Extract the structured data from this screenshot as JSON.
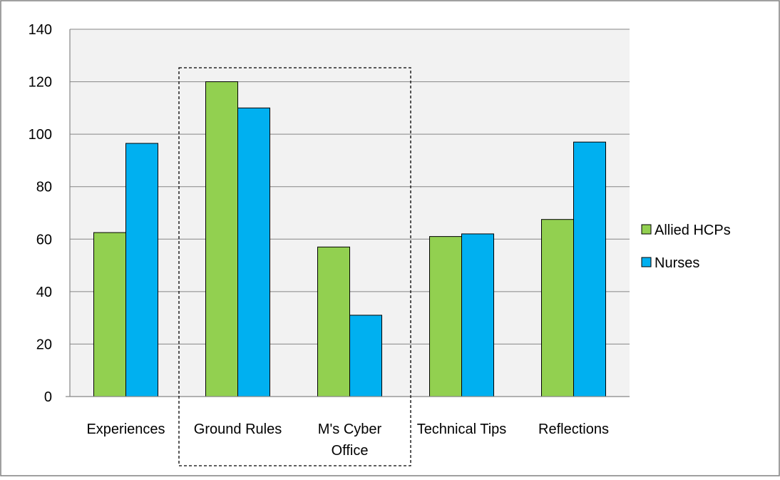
{
  "chart_data": {
    "type": "bar",
    "title": "",
    "xlabel": "",
    "ylabel": "",
    "categories": [
      "Experiences",
      "Ground Rules",
      "M's Cyber Office",
      "Technical Tips",
      "Reflections"
    ],
    "category_lines": [
      [
        "Experiences"
      ],
      [
        "Ground Rules"
      ],
      [
        "M's Cyber",
        "Office"
      ],
      [
        "Technical Tips"
      ],
      [
        "Reflections"
      ]
    ],
    "series": [
      {
        "name": "Allied HCPs",
        "values": [
          62.5,
          120,
          57,
          61,
          67.5
        ],
        "color": "#92D050"
      },
      {
        "name": "Nurses",
        "values": [
          96.5,
          110,
          31,
          62,
          97
        ],
        "color": "#00B0F0"
      }
    ],
    "ylim": [
      0,
      140
    ],
    "yticks": [
      0,
      20,
      40,
      60,
      80,
      100,
      120,
      140
    ],
    "grid": true,
    "plot_background": "#F2F2F2",
    "legend_position": "right",
    "highlight": {
      "from": "Ground Rules",
      "to": "M's Cyber Office",
      "style": "dashed-box"
    }
  }
}
